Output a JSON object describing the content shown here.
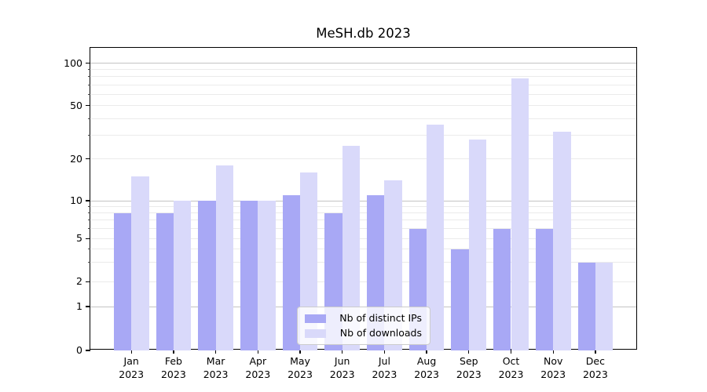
{
  "title": "MeSH.db 2023",
  "chart_data": {
    "type": "bar",
    "title": "MeSH.db 2023",
    "categories": [
      "Jan 2023",
      "Feb 2023",
      "Mar 2023",
      "Apr 2023",
      "May 2023",
      "Jun 2023",
      "Jul 2023",
      "Aug 2023",
      "Sep 2023",
      "Oct 2023",
      "Nov 2023",
      "Dec 2023"
    ],
    "series": [
      {
        "name": "Nb of distinct IPs",
        "color": "#a8a8f5",
        "values": [
          8,
          8,
          10,
          10,
          11,
          8,
          11,
          6,
          4,
          6,
          6,
          3
        ]
      },
      {
        "name": "Nb of downloads",
        "color": "#d9d9fa",
        "values": [
          15,
          10,
          18,
          10,
          16,
          25,
          14,
          36,
          28,
          78,
          32,
          3
        ]
      }
    ],
    "xlabel": "",
    "ylabel": "",
    "yscale": "symlog",
    "ylim": [
      0,
      127
    ],
    "y_ticks": [
      0,
      1,
      2,
      5,
      10,
      20,
      50,
      100
    ],
    "y_major_gridlines": [
      1,
      10,
      100
    ],
    "y_minor_gridlines": [
      2,
      3,
      4,
      5,
      6,
      7,
      8,
      9,
      20,
      30,
      40,
      50,
      60,
      70,
      80,
      90
    ],
    "grid": true,
    "legend_position": "lower center"
  },
  "legend": {
    "items": [
      "Nb of distinct IPs",
      "Nb of downloads"
    ]
  }
}
